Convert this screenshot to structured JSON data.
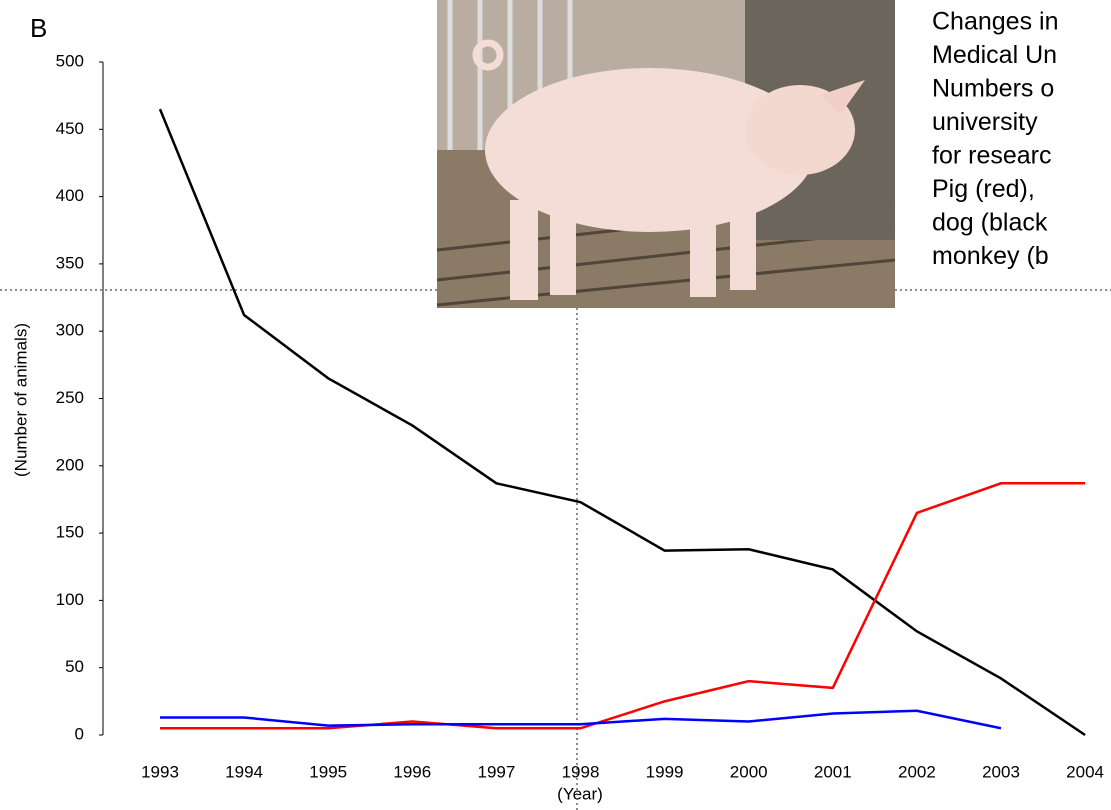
{
  "chart_data": {
    "type": "line",
    "panel_label": "B",
    "ylabel": "(Number of animals)",
    "xlabel": "(Year)",
    "categories": [
      "1993",
      "1994",
      "1995",
      "1996",
      "1997",
      "1998",
      "1999",
      "2000",
      "2001",
      "2002",
      "2003",
      "2004"
    ],
    "series": [
      {
        "name": "dog",
        "color": "#000000",
        "values": [
          465,
          312,
          265,
          230,
          187,
          173,
          137,
          138,
          123,
          77,
          42,
          0
        ]
      },
      {
        "name": "pig",
        "color": "#ff0000",
        "values": [
          5,
          5,
          5,
          10,
          5,
          5,
          25,
          40,
          35,
          165,
          187,
          187
        ]
      },
      {
        "name": "monkey",
        "color": "#0000ff",
        "values": [
          13,
          13,
          7,
          8,
          8,
          8,
          12,
          10,
          16,
          18,
          5,
          null
        ]
      }
    ],
    "ylim": [
      0,
      500
    ],
    "yticks": [
      0,
      50,
      100,
      150,
      200,
      250,
      300,
      350,
      400,
      450,
      500
    ],
    "grid": false,
    "caption_lines": [
      "Changes in",
      "Medical Un",
      "Numbers o",
      "university",
      "for researc",
      "Pig (red),",
      "dog (black",
      "monkey (b"
    ]
  }
}
